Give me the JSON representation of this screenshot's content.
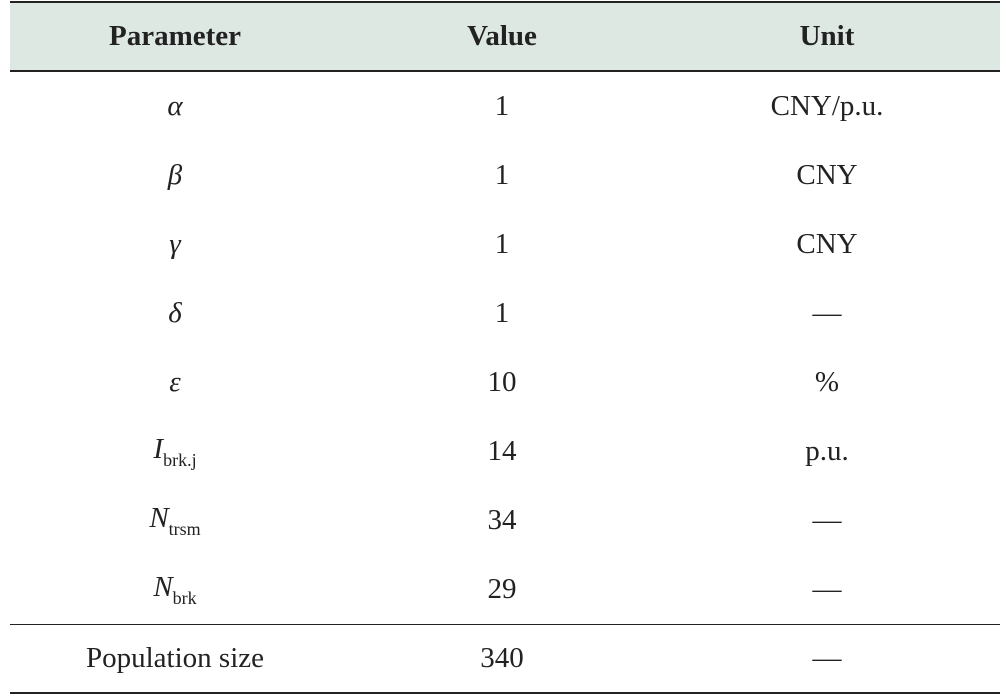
{
  "table": {
    "header": [
      "Parameter",
      "Value",
      "Unit"
    ],
    "rows": [
      [
        {
          "symbol": "α"
        },
        1,
        "CNY/p.u."
      ],
      [
        {
          "symbol": "β"
        },
        1,
        "CNY"
      ],
      [
        {
          "symbol": "γ"
        },
        1,
        "CNY"
      ],
      [
        {
          "symbol": "δ"
        },
        1,
        "—"
      ],
      [
        {
          "symbol": "ε"
        },
        10,
        "%"
      ],
      [
        {
          "symbol": "I",
          "sub": "brk.j"
        },
        14,
        "p.u."
      ],
      [
        {
          "symbol": "N",
          "sub": "trsm"
        },
        34,
        "—"
      ],
      [
        {
          "symbol": "N",
          "sub": "brk"
        },
        29,
        "—"
      ],
      [
        {
          "text": "Population size"
        },
        340,
        "—"
      ]
    ]
  }
}
